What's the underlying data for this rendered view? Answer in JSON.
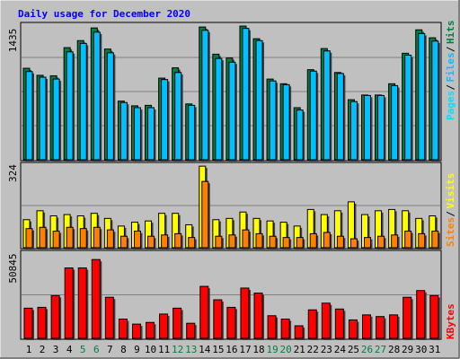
{
  "title": "Daily usage for December 2020",
  "colors": {
    "background": "#c0c0c0",
    "title": "#0000ff",
    "hits": "#008040",
    "files": "#00c0ff",
    "pages": "#00e0ff",
    "visits": "#ffff00",
    "sites": "#ff8000",
    "kbytes": "#ff0000",
    "weekend_day_label": "#008040",
    "weekday_label": "#000000"
  },
  "chart_data": [
    {
      "type": "bar",
      "panel": "hits_files_pages",
      "ymax_label": "1435",
      "ylim": [
        0,
        1435
      ],
      "legend": [
        "Pages",
        "Files",
        "Hits"
      ],
      "categories": [
        "1",
        "2",
        "3",
        "4",
        "5",
        "6",
        "7",
        "8",
        "9",
        "10",
        "11",
        "12",
        "13",
        "14",
        "15",
        "16",
        "17",
        "18",
        "19",
        "20",
        "21",
        "22",
        "23",
        "24",
        "25",
        "26",
        "27",
        "28",
        "29",
        "30",
        "31"
      ],
      "series": [
        {
          "name": "Hits",
          "values": [
            975,
            900,
            895,
            1195,
            1270,
            1405,
            1180,
            625,
            575,
            580,
            870,
            980,
            595,
            1415,
            1125,
            1085,
            1425,
            1290,
            860,
            810,
            555,
            960,
            1185,
            930,
            640,
            690,
            690,
            810,
            1135,
            1385,
            1300
          ]
        },
        {
          "name": "Files",
          "values": [
            940,
            880,
            860,
            1150,
            1240,
            1360,
            1140,
            610,
            555,
            555,
            855,
            930,
            580,
            1380,
            1080,
            1040,
            1400,
            1270,
            840,
            800,
            530,
            945,
            1160,
            920,
            620,
            685,
            685,
            790,
            1115,
            1345,
            1265
          ]
        }
      ]
    },
    {
      "type": "bar",
      "panel": "visits_sites",
      "ymax_label": "324",
      "ylim": [
        0,
        324
      ],
      "legend": [
        "Sites",
        "Visits"
      ],
      "categories": [
        "1",
        "2",
        "3",
        "4",
        "5",
        "6",
        "7",
        "8",
        "9",
        "10",
        "11",
        "12",
        "13",
        "14",
        "15",
        "16",
        "17",
        "18",
        "19",
        "20",
        "21",
        "22",
        "23",
        "24",
        "25",
        "26",
        "27",
        "28",
        "29",
        "30",
        "31"
      ],
      "series": [
        {
          "name": "Visits",
          "values": [
            110,
            145,
            125,
            130,
            125,
            135,
            115,
            85,
            100,
            105,
            135,
            135,
            90,
            320,
            110,
            115,
            140,
            115,
            105,
            100,
            85,
            150,
            130,
            145,
            180,
            130,
            145,
            150,
            145,
            115,
            125
          ]
        },
        {
          "name": "Sites",
          "values": [
            75,
            80,
            65,
            80,
            75,
            80,
            70,
            45,
            65,
            45,
            50,
            55,
            40,
            260,
            45,
            50,
            70,
            55,
            45,
            40,
            40,
            55,
            60,
            45,
            35,
            40,
            45,
            50,
            65,
            55,
            65
          ]
        }
      ]
    },
    {
      "type": "bar",
      "panel": "kbytes",
      "ymax_label": "50845",
      "ylim": [
        0,
        50845
      ],
      "legend": [
        "KBytes"
      ],
      "categories": [
        "1",
        "2",
        "3",
        "4",
        "5",
        "6",
        "7",
        "8",
        "9",
        "10",
        "11",
        "12",
        "13",
        "14",
        "15",
        "16",
        "17",
        "18",
        "19",
        "20",
        "21",
        "22",
        "23",
        "24",
        "25",
        "26",
        "27",
        "28",
        "29",
        "30",
        "31"
      ],
      "series": [
        {
          "name": "KBytes",
          "values": [
            18000,
            18500,
            25500,
            42000,
            42000,
            47000,
            24500,
            11500,
            8500,
            9500,
            14500,
            18000,
            9000,
            31000,
            23000,
            18500,
            30000,
            27000,
            13500,
            11500,
            7500,
            17000,
            21000,
            17500,
            11000,
            14000,
            13000,
            14000,
            24500,
            28500,
            25500
          ]
        }
      ]
    }
  ],
  "day_labels": [
    "1",
    "2",
    "3",
    "4",
    "5",
    "6",
    "7",
    "8",
    "9",
    "10",
    "11",
    "12",
    "13",
    "14",
    "15",
    "16",
    "17",
    "18",
    "19",
    "20",
    "21",
    "22",
    "23",
    "24",
    "25",
    "26",
    "27",
    "28",
    "29",
    "30",
    "31"
  ],
  "weekend_days": [
    "5",
    "6",
    "12",
    "13",
    "19",
    "20",
    "26",
    "27"
  ]
}
